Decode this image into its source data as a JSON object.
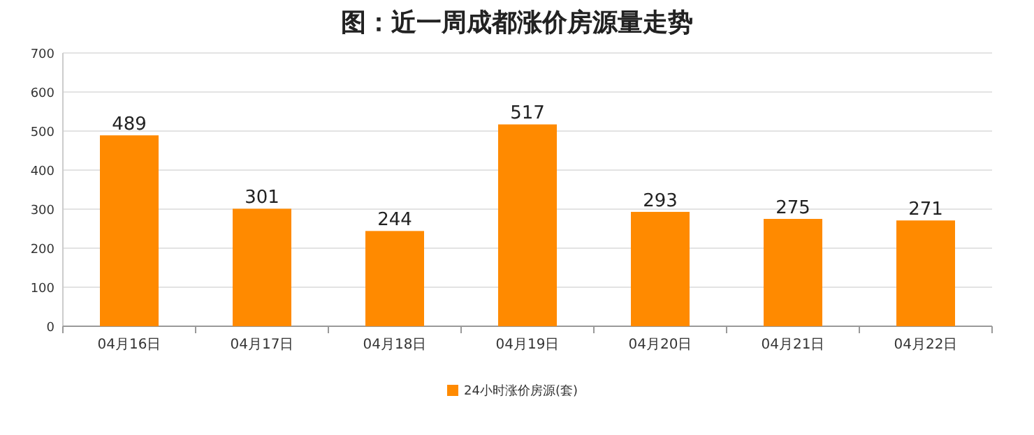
{
  "chart_data": {
    "type": "bar",
    "title": "图：近一周成都涨价房源量走势",
    "categories": [
      "04月16日",
      "04月17日",
      "04月18日",
      "04月19日",
      "04月20日",
      "04月21日",
      "04月22日"
    ],
    "series": [
      {
        "name": "24小时涨价房源(套)",
        "color": "#ff8a00",
        "values": [
          489,
          301,
          244,
          517,
          293,
          275,
          271
        ]
      }
    ],
    "ylim": [
      0,
      700
    ],
    "yticks": [
      0,
      100,
      200,
      300,
      400,
      500,
      600,
      700
    ],
    "grid": "y",
    "legend": "bottom",
    "data_labels": true
  }
}
